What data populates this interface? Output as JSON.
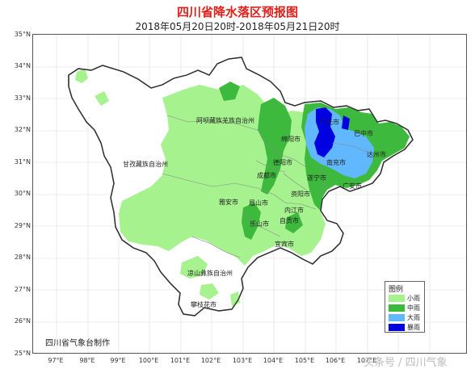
{
  "title": "四川省降水落区预报图",
  "subtitle": "2018年05月20日20时-2018年05月21日20时",
  "latitude_ticks": [
    "35°N",
    "34°N",
    "33°N",
    "32°N",
    "31°N",
    "30°N",
    "29°N",
    "28°N",
    "27°N",
    "26°N",
    "25°N"
  ],
  "longitude_ticks": [
    "97°E",
    "98°E",
    "99°E",
    "100°E",
    "101°E",
    "102°E",
    "103°E",
    "104°E",
    "105°E",
    "106°E",
    "107°E"
  ],
  "regions": {
    "aba": "阿坝藏族羌族自治州",
    "ganzi": "甘孜藏族自治州",
    "liangshan": "凉山彝族自治州",
    "panzhihua": "攀枝花市",
    "chengdu": "成都市",
    "deyang": "德阳市",
    "mianyang": "绵阳市",
    "guangyuan": "广元市",
    "bazhong": "巴中市",
    "dazhou": "达州市",
    "nanchong": "南充市",
    "suining": "遂宁市",
    "guangan": "广安市",
    "ziyang": "资阳市",
    "neijiang": "内江市",
    "zigong": "自贡市",
    "meishan": "眉山市",
    "yaan": "雅安市",
    "leshan": "乐山市",
    "yibin": "宜宾市"
  },
  "credit": "四川省气象台制作",
  "legend": {
    "title": "图例",
    "items": [
      {
        "label": "小雨",
        "color": "#a6f28f"
      },
      {
        "label": "中雨",
        "color": "#3dba3d"
      },
      {
        "label": "大雨",
        "color": "#61b8ff"
      },
      {
        "label": "暴雨",
        "color": "#0000e1"
      }
    ]
  },
  "watermark": "头条号 / 四川气象"
}
